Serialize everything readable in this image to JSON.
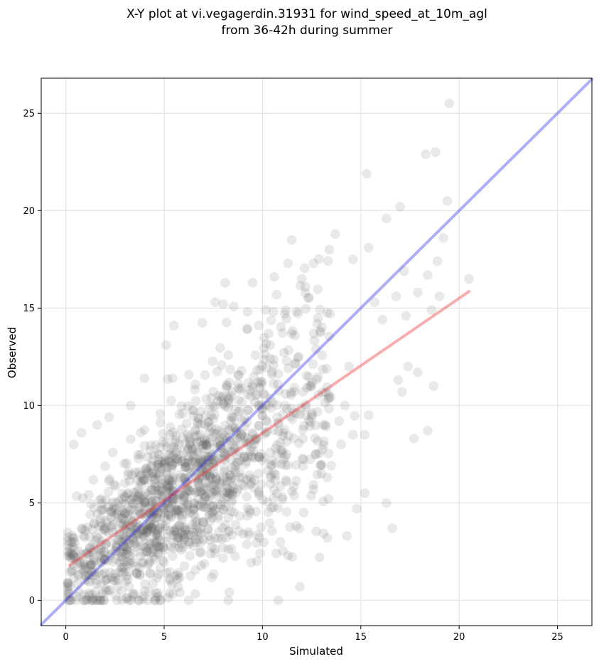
{
  "chart_data": {
    "type": "scatter",
    "title": "X-Y plot at vi.vegagerdin.31931 for wind_speed_at_10m_agl",
    "subtitle": "from 36-42h during summer",
    "xlabel": "Simulated",
    "ylabel": "Observed",
    "xlim": [
      -1.25,
      26.75
    ],
    "ylim": [
      -1.3,
      26.8
    ],
    "x_ticks": [
      0,
      5,
      10,
      15,
      20,
      25
    ],
    "y_ticks": [
      0,
      5,
      10,
      15,
      20,
      25
    ],
    "x_tick_labels": [
      "0",
      "5",
      "10",
      "15",
      "20",
      "25"
    ],
    "y_tick_labels": [
      "0",
      "5",
      "10",
      "15",
      "20",
      "25"
    ],
    "grid": true,
    "point_color": "#555555",
    "point_opacity": 0.13,
    "identity_line": {
      "color": "#3333ee",
      "opacity": 0.4,
      "x": [
        -1.25,
        26.75
      ],
      "y": [
        -1.25,
        26.75
      ]
    },
    "regression_line": {
      "color": "#ee3333",
      "opacity": 0.4,
      "x": [
        0.2,
        20.5
      ],
      "y": [
        1.8,
        15.85
      ]
    },
    "outliers": [
      {
        "x": 19.5,
        "y": 25.5
      },
      {
        "x": 18.3,
        "y": 22.9
      },
      {
        "x": 18.8,
        "y": 23.0
      },
      {
        "x": 15.3,
        "y": 21.9
      },
      {
        "x": 19.4,
        "y": 20.5
      },
      {
        "x": 17.0,
        "y": 20.2
      },
      {
        "x": 16.3,
        "y": 19.6
      },
      {
        "x": 19.2,
        "y": 18.6
      },
      {
        "x": 13.7,
        "y": 18.8
      },
      {
        "x": 13.4,
        "y": 18.0
      },
      {
        "x": 15.4,
        "y": 18.1
      },
      {
        "x": 14.6,
        "y": 17.5
      },
      {
        "x": 18.9,
        "y": 17.4
      },
      {
        "x": 17.2,
        "y": 16.9
      },
      {
        "x": 18.4,
        "y": 16.7
      },
      {
        "x": 20.5,
        "y": 16.5
      },
      {
        "x": 19.0,
        "y": 15.6
      },
      {
        "x": 18.6,
        "y": 14.9
      },
      {
        "x": 17.9,
        "y": 15.8
      },
      {
        "x": 16.8,
        "y": 15.6
      },
      {
        "x": 17.3,
        "y": 14.6
      },
      {
        "x": 15.7,
        "y": 15.3
      },
      {
        "x": 16.1,
        "y": 14.4
      },
      {
        "x": 17.4,
        "y": 12.0
      },
      {
        "x": 16.9,
        "y": 11.3
      },
      {
        "x": 17.9,
        "y": 11.7
      },
      {
        "x": 18.7,
        "y": 11.0
      },
      {
        "x": 17.1,
        "y": 10.7
      },
      {
        "x": 17.7,
        "y": 8.3
      },
      {
        "x": 18.4,
        "y": 8.7
      },
      {
        "x": 15.4,
        "y": 9.5
      },
      {
        "x": 15.2,
        "y": 8.5
      },
      {
        "x": 16.3,
        "y": 5.0
      },
      {
        "x": 16.6,
        "y": 3.7
      },
      {
        "x": 15.2,
        "y": 5.5
      },
      {
        "x": 14.8,
        "y": 4.7
      },
      {
        "x": 14.3,
        "y": 3.3
      },
      {
        "x": 13.3,
        "y": 3.2
      },
      {
        "x": 12.9,
        "y": 2.2
      },
      {
        "x": 11.9,
        "y": 0.7
      },
      {
        "x": 10.7,
        "y": 2.4
      },
      {
        "x": 0.8,
        "y": 8.6
      },
      {
        "x": 0.4,
        "y": 8.0
      },
      {
        "x": 1.6,
        "y": 9.0
      },
      {
        "x": 2.2,
        "y": 9.4
      },
      {
        "x": 3.3,
        "y": 10.0
      },
      {
        "x": 4.0,
        "y": 11.4
      },
      {
        "x": 5.1,
        "y": 13.1
      },
      {
        "x": 5.5,
        "y": 14.1
      },
      {
        "x": 7.6,
        "y": 15.3
      },
      {
        "x": 8.0,
        "y": 15.2
      },
      {
        "x": 9.5,
        "y": 16.3
      },
      {
        "x": 11.3,
        "y": 17.3
      },
      {
        "x": 12.6,
        "y": 17.3
      },
      {
        "x": 12.0,
        "y": 16.5
      },
      {
        "x": 10.6,
        "y": 16.6
      },
      {
        "x": 14.4,
        "y": 12.0
      },
      {
        "x": 14.2,
        "y": 10.0
      },
      {
        "x": 13.9,
        "y": 9.2
      },
      {
        "x": 14.0,
        "y": 8.0
      },
      {
        "x": 14.6,
        "y": 8.5
      },
      {
        "x": 13.0,
        "y": 6.5
      },
      {
        "x": 12.1,
        "y": 4.5
      }
    ]
  }
}
